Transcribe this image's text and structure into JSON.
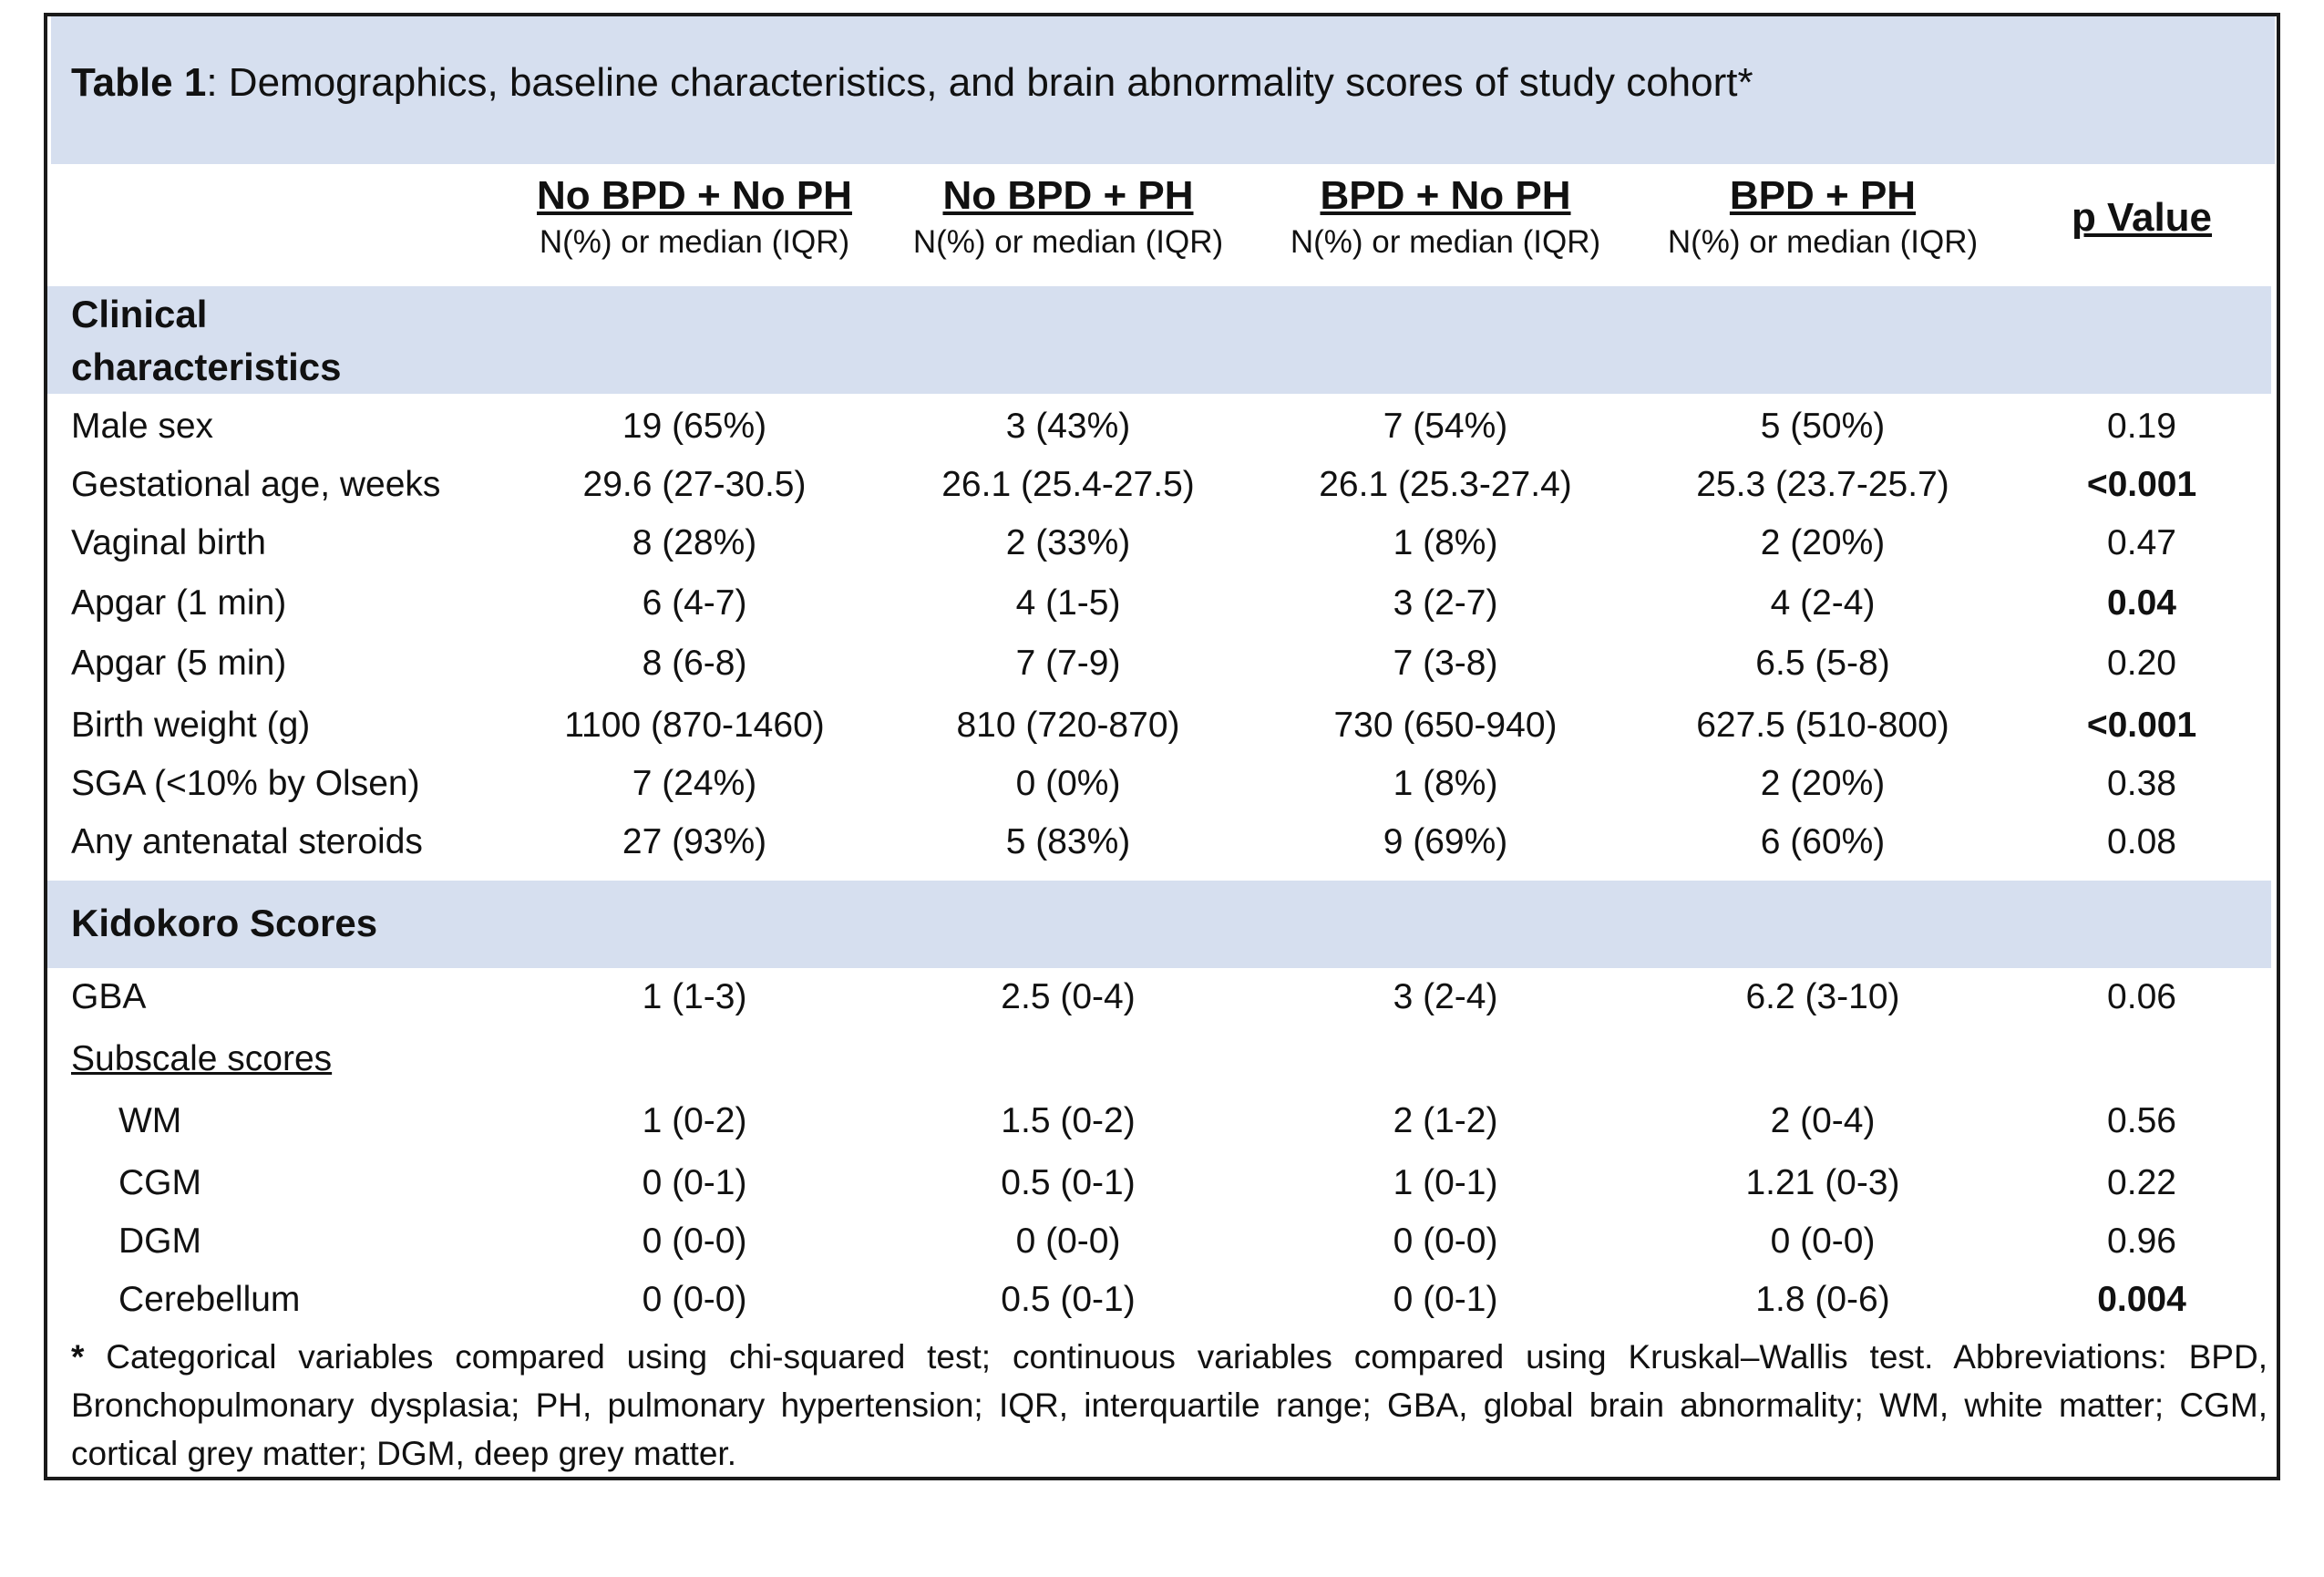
{
  "title": {
    "label": "Table 1",
    "text": ": Demographics, baseline characteristics, and brain abnormality scores of study cohort*"
  },
  "columns": [
    {
      "name": "No BPD + No PH",
      "sub": "N(%) or median (IQR)"
    },
    {
      "name": "No BPD + PH",
      "sub": "N(%) or median (IQR)"
    },
    {
      "name": "BPD + No PH",
      "sub": "N(%) or median (IQR)"
    },
    {
      "name": "BPD + PH",
      "sub": "N(%) or median (IQR)"
    }
  ],
  "pvalue_header": "p Value",
  "sections": {
    "clinical": "Clinical characteristics",
    "kidokoro": "Kidokoro Scores"
  },
  "rows": [
    {
      "label": "Male sex",
      "values": [
        "19 (65%)",
        "3 (43%)",
        "7 (54%)",
        "5 (50%)"
      ],
      "p": "0.19"
    },
    {
      "label": "Gestational age, weeks",
      "values": [
        "29.6 (27-30.5)",
        "26.1 (25.4-27.5)",
        "26.1 (25.3-27.4)",
        "25.3 (23.7-25.7)"
      ],
      "p": "<0.001"
    },
    {
      "label": "Vaginal birth",
      "values": [
        "8 (28%)",
        "2 (33%)",
        "1 (8%)",
        "2 (20%)"
      ],
      "p": "0.47"
    },
    {
      "label": "Apgar (1 min)",
      "values": [
        "6 (4-7)",
        "4 (1-5)",
        "3 (2-7)",
        "4 (2-4)"
      ],
      "p": "0.04"
    },
    {
      "label": "Apgar (5 min)",
      "values": [
        "8 (6-8)",
        "7 (7-9)",
        "7 (3-8)",
        "6.5 (5-8)"
      ],
      "p": "0.20"
    },
    {
      "label": "Birth weight (g)",
      "values": [
        "1100 (870-1460)",
        "810 (720-870)",
        "730 (650-940)",
        "627.5 (510-800)"
      ],
      "p": "<0.001"
    },
    {
      "label": "SGA (<10% by Olsen)",
      "values": [
        "7 (24%)",
        "0 (0%)",
        "1 (8%)",
        "2 (20%)"
      ],
      "p": "0.38"
    },
    {
      "label": "Any antenatal steroids",
      "values": [
        "27 (93%)",
        "5 (83%)",
        "9 (69%)",
        "6 (60%)"
      ],
      "p": "0.08"
    },
    {
      "label": "GBA",
      "values": [
        "1 (1-3)",
        "2.5 (0-4)",
        "3 (2-4)",
        "6.2 (3-10)"
      ],
      "p": "0.06"
    },
    {
      "label": "Subscale scores"
    },
    {
      "label": "WM",
      "values": [
        "1 (0-2)",
        "1.5 (0-2)",
        "2 (1-2)",
        "2 (0-4)"
      ],
      "p": "0.56"
    },
    {
      "label": "CGM",
      "values": [
        "0 (0-1)",
        "0.5 (0-1)",
        "1 (0-1)",
        "1.21 (0-3)"
      ],
      "p": "0.22"
    },
    {
      "label": "DGM",
      "values": [
        "0 (0-0)",
        "0 (0-0)",
        "0 (0-0)",
        "0 (0-0)"
      ],
      "p": "0.96"
    },
    {
      "label": "Cerebellum",
      "values": [
        "0 (0-0)",
        "0.5 (0-1)",
        "0 (0-1)",
        "1.8 (0-6)"
      ],
      "p": "0.004"
    }
  ],
  "footnote": {
    "mark": "*",
    "text": " Categorical variables compared using chi-squared test; continuous variables compared using Kruskal–Wallis test. Abbreviations: BPD, Bronchopulmonary dysplasia; PH, pulmonary hypertension; IQR, interquartile range; GBA, global brain abnormality; WM, white matter; CGM, cortical grey matter; DGM, deep grey matter."
  }
}
